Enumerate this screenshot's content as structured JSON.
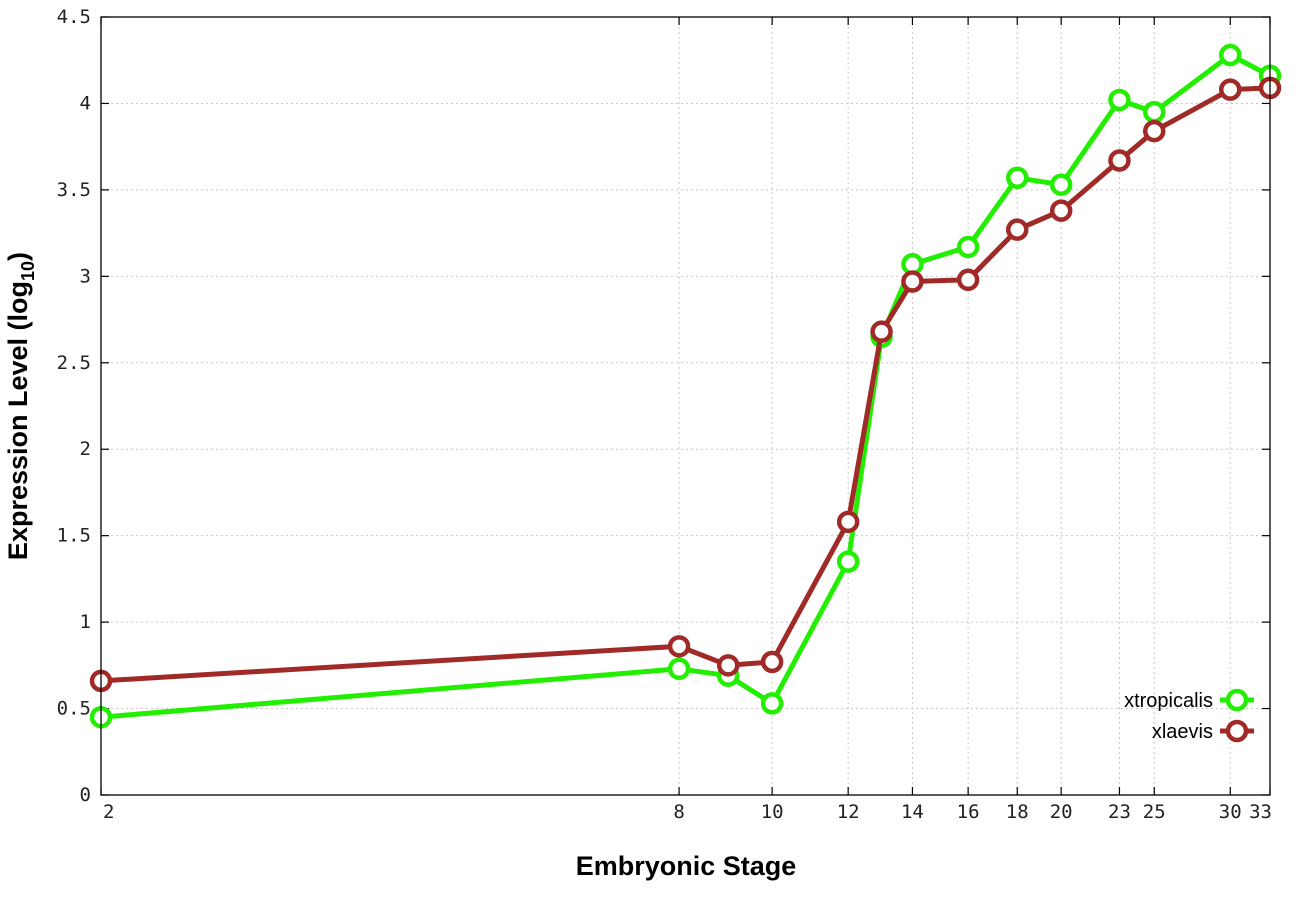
{
  "chart_data": {
    "type": "line",
    "xlabel": "Embryonic Stage",
    "ylabel_main": "Expression Level (log",
    "ylabel_sub": "10",
    "ylabel_close": ")",
    "x_ticks": [
      "2",
      "8",
      "10",
      "12",
      "14",
      "16",
      "18",
      "20",
      "23",
      "25",
      "30",
      "33"
    ],
    "y_ticks": [
      "0",
      "0.5",
      "1",
      "1.5",
      "2",
      "2.5",
      "3",
      "3.5",
      "4",
      "4.5"
    ],
    "ylim": [
      0,
      4.5
    ],
    "grid": true,
    "legend_position": "bottom-right",
    "x_scale": "log",
    "x": [
      2,
      8,
      9,
      10,
      12,
      13,
      14,
      16,
      18,
      20,
      23,
      25,
      30,
      33
    ],
    "series": [
      {
        "name": "xtropicalis",
        "color": "#22ee00",
        "values": [
          0.45,
          0.73,
          0.69,
          0.53,
          1.35,
          2.65,
          3.07,
          3.17,
          3.57,
          3.53,
          4.02,
          3.95,
          4.28,
          4.16
        ]
      },
      {
        "name": "xlaevis",
        "color": "#a02a28",
        "values": [
          0.66,
          0.86,
          0.75,
          0.77,
          1.58,
          2.68,
          2.97,
          2.98,
          3.27,
          3.38,
          3.67,
          3.84,
          4.08,
          4.09
        ]
      }
    ]
  }
}
